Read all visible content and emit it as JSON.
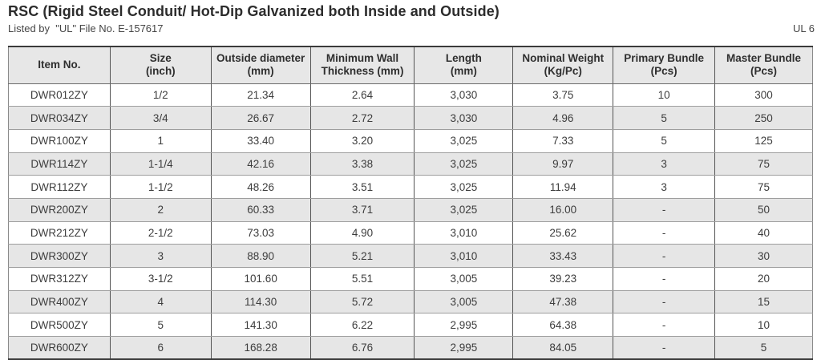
{
  "page": {
    "title": "RSC (Rigid Steel Conduit/ Hot-Dip Galvanized both Inside and Outside)",
    "subtitle": "Listed by  \"UL\" File No. E-157617",
    "standard_ref": "UL 6"
  },
  "colors": {
    "header_bg": "#e7e7e7",
    "stripe_bg": "#e6e6e6",
    "border_dark": "#555555",
    "border_light": "#9e9e9e",
    "border_outer": "#3a3a3a",
    "text": "#3d3d3d"
  },
  "table": {
    "columns": [
      {
        "line1": "Item No.",
        "line2": ""
      },
      {
        "line1": "Size",
        "line2": "(inch)"
      },
      {
        "line1": "Outside diameter",
        "line2": "(mm)"
      },
      {
        "line1": "Minimum Wall",
        "line2": "Thickness (mm)"
      },
      {
        "line1": "Length",
        "line2": "(mm)"
      },
      {
        "line1": "Nominal Weight",
        "line2": "(Kg/Pc)"
      },
      {
        "line1": "Primary Bundle",
        "line2": "(Pcs)"
      },
      {
        "line1": "Master Bundle",
        "line2": "(Pcs)"
      }
    ],
    "rows": [
      [
        "DWR012ZY",
        "1/2",
        "21.34",
        "2.64",
        "3,030",
        "3.75",
        "10",
        "300"
      ],
      [
        "DWR034ZY",
        "3/4",
        "26.67",
        "2.72",
        "3,030",
        "4.96",
        "5",
        "250"
      ],
      [
        "DWR100ZY",
        "1",
        "33.40",
        "3.20",
        "3,025",
        "7.33",
        "5",
        "125"
      ],
      [
        "DWR114ZY",
        "1-1/4",
        "42.16",
        "3.38",
        "3,025",
        "9.97",
        "3",
        "75"
      ],
      [
        "DWR112ZY",
        "1-1/2",
        "48.26",
        "3.51",
        "3,025",
        "11.94",
        "3",
        "75"
      ],
      [
        "DWR200ZY",
        "2",
        "60.33",
        "3.71",
        "3,025",
        "16.00",
        "-",
        "50"
      ],
      [
        "DWR212ZY",
        "2-1/2",
        "73.03",
        "4.90",
        "3,010",
        "25.62",
        "-",
        "40"
      ],
      [
        "DWR300ZY",
        "3",
        "88.90",
        "5.21",
        "3,010",
        "33.43",
        "-",
        "30"
      ],
      [
        "DWR312ZY",
        "3-1/2",
        "101.60",
        "5.51",
        "3,005",
        "39.23",
        "-",
        "20"
      ],
      [
        "DWR400ZY",
        "4",
        "114.30",
        "5.72",
        "3,005",
        "47.38",
        "-",
        "15"
      ],
      [
        "DWR500ZY",
        "5",
        "141.30",
        "6.22",
        "2,995",
        "64.38",
        "-",
        "10"
      ],
      [
        "DWR600ZY",
        "6",
        "168.28",
        "6.76",
        "2,995",
        "84.05",
        "-",
        "5"
      ]
    ]
  }
}
